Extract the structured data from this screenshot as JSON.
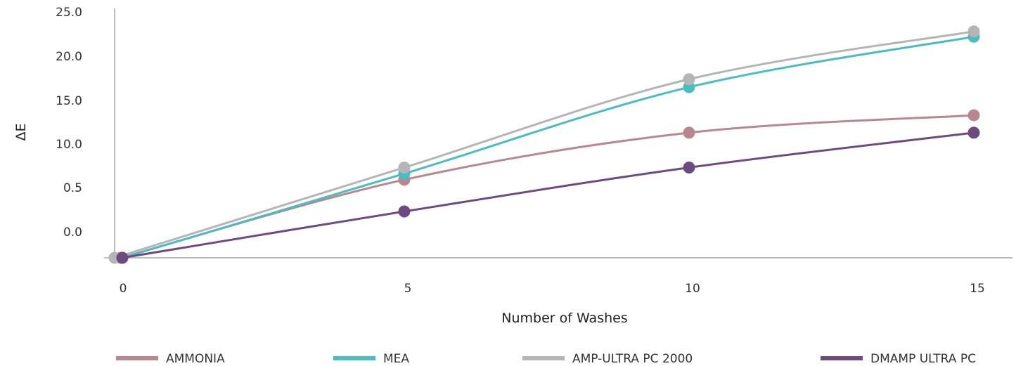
{
  "chart_data": {
    "type": "line",
    "title": "",
    "xlabel": "Number of Washes",
    "ylabel": "ΔE",
    "x": [
      0,
      5,
      10,
      15
    ],
    "x_ticks": [
      "0",
      "5",
      "10",
      "15"
    ],
    "y_ticks": [
      "0.0",
      "0.5",
      "10.0",
      "15.0",
      "20.0",
      "25.0"
    ],
    "grid": false,
    "smooth": true,
    "legend_position": "bottom",
    "series": [
      {
        "name": "AMMONIA",
        "color": "#B9878F",
        "values": [
          0.0,
          5.9,
          11.3,
          13.3
        ]
      },
      {
        "name": "MEA",
        "color": "#4BBDC0",
        "values": [
          0.0,
          6.6,
          16.5,
          22.2
        ]
      },
      {
        "name": "AMP-ULTRA PC 2000",
        "color": "#B5B5B8",
        "values": [
          0.0,
          7.3,
          17.4,
          22.8
        ]
      },
      {
        "name": "DMAMP ULTRA PC",
        "color": "#6D4A82",
        "values": [
          0.0,
          2.3,
          7.3,
          11.3
        ]
      }
    ]
  }
}
